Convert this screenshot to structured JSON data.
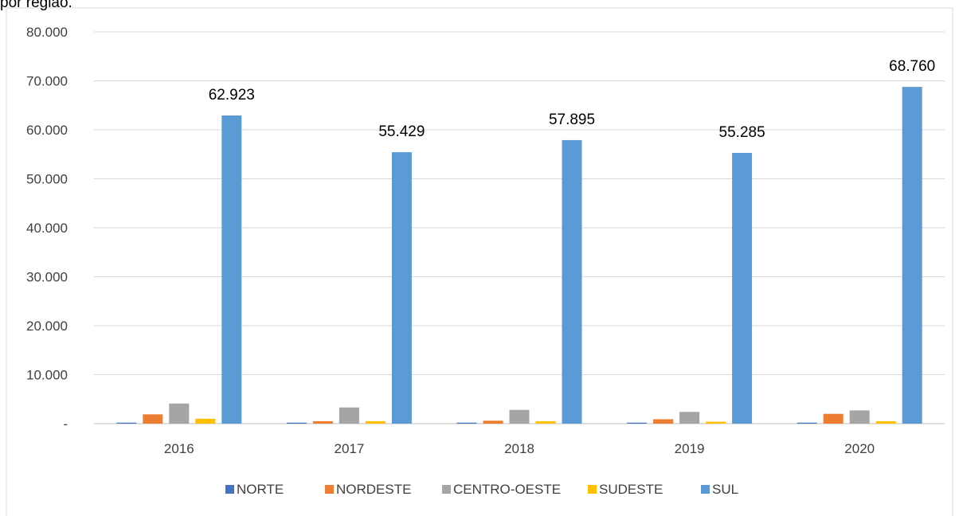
{
  "chart_data": {
    "type": "bar",
    "title": "por região.",
    "categories": [
      "2016",
      "2017",
      "2018",
      "2019",
      "2020"
    ],
    "series": [
      {
        "name": "NORTE",
        "color": "#4472c4",
        "values": [
          200,
          200,
          200,
          200,
          200
        ]
      },
      {
        "name": "NORDESTE",
        "color": "#ed7d31",
        "values": [
          1900,
          500,
          600,
          900,
          2000
        ]
      },
      {
        "name": "CENTRO-OESTE",
        "color": "#a5a5a5",
        "values": [
          4100,
          3300,
          2800,
          2400,
          2700
        ]
      },
      {
        "name": "SUDESTE",
        "color": "#ffc000",
        "values": [
          1000,
          500,
          500,
          400,
          500
        ]
      },
      {
        "name": "SUL",
        "color": "#5b9bd5",
        "values": [
          62923,
          55429,
          57895,
          55285,
          68760
        ],
        "value_labels": [
          "62.923",
          "55.429",
          "57.895",
          "55.285",
          "68.760"
        ]
      }
    ],
    "ylim": [
      0,
      80000
    ],
    "yticks": [
      {
        "value": 0,
        "label": "-"
      },
      {
        "value": 10000,
        "label": "10.000"
      },
      {
        "value": 20000,
        "label": "20.000"
      },
      {
        "value": 30000,
        "label": "30.000"
      },
      {
        "value": 40000,
        "label": "40.000"
      },
      {
        "value": 50000,
        "label": "50.000"
      },
      {
        "value": 60000,
        "label": "60.000"
      },
      {
        "value": 70000,
        "label": "70.000"
      },
      {
        "value": 80000,
        "label": "80.000"
      }
    ],
    "grid": true,
    "legend": "bottom"
  }
}
